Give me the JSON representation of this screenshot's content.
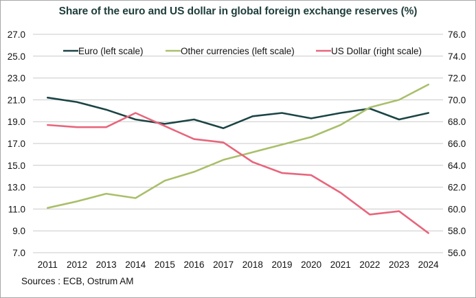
{
  "chart_data": {
    "type": "line",
    "title": "Share of the euro and US dollar in global foreign exchange reserves (%)",
    "source": "Sources : ECB, Ostrum AM",
    "categories": [
      "2011",
      "2012",
      "2013",
      "2014",
      "2015",
      "2016",
      "2017",
      "2018",
      "2019",
      "2020",
      "2021",
      "2022",
      "2023",
      "2024"
    ],
    "left_axis": {
      "ylim": [
        7.0,
        27.0
      ],
      "ticks": [
        "27.0",
        "25.0",
        "23.0",
        "21.0",
        "19.0",
        "17.0",
        "15.0",
        "13.0",
        "11.0",
        "9.0",
        "7.0"
      ],
      "tick_values": [
        27,
        25,
        23,
        21,
        19,
        17,
        15,
        13,
        11,
        9,
        7
      ]
    },
    "right_axis": {
      "ylim": [
        56.0,
        76.0
      ],
      "ticks": [
        "76.0",
        "74.0",
        "72.0",
        "70.0",
        "68.0",
        "66.0",
        "64.0",
        "62.0",
        "60.0",
        "58.0",
        "56.0"
      ],
      "tick_values": [
        76,
        74,
        72,
        70,
        68,
        66,
        64,
        62,
        60,
        58,
        56
      ]
    },
    "grid": true,
    "legend_position": "top",
    "series": [
      {
        "name": "Euro (left scale)",
        "axis": "left",
        "color": "#1b4444",
        "values": [
          21.2,
          20.8,
          20.1,
          19.2,
          18.8,
          19.2,
          18.4,
          19.5,
          19.8,
          19.3,
          19.8,
          20.2,
          19.2,
          19.8
        ]
      },
      {
        "name": "Other currencies (left scale)",
        "axis": "left",
        "color": "#a9bf6a",
        "values": [
          11.1,
          11.7,
          12.4,
          12.0,
          13.6,
          14.4,
          15.5,
          16.2,
          16.9,
          17.6,
          18.7,
          20.3,
          21.0,
          22.4
        ]
      },
      {
        "name": "US Dollar (right scale)",
        "axis": "right",
        "color": "#e8657c",
        "values": [
          67.7,
          67.5,
          67.5,
          68.8,
          67.6,
          66.4,
          66.1,
          64.3,
          63.3,
          63.1,
          61.5,
          59.5,
          59.8,
          57.8
        ]
      }
    ],
    "grid_color": "#c8c8c8"
  }
}
